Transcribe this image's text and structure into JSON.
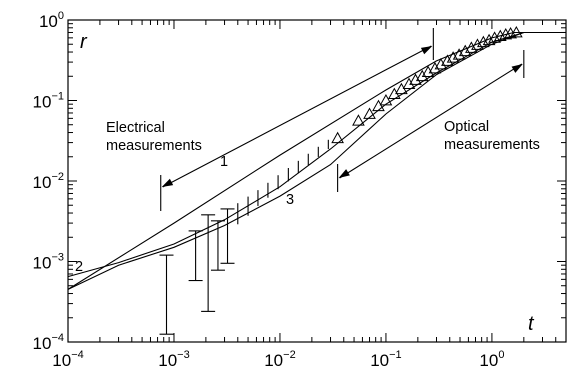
{
  "chart_data": {
    "type": "line",
    "title": "",
    "xlabel": "t",
    "ylabel": "r",
    "xscale": "log",
    "yscale": "log",
    "xlim": [
      0.0001,
      5
    ],
    "ylim": [
      0.0001,
      1
    ],
    "grid": false,
    "x_ticks": [
      {
        "base": "10",
        "exp": "−4",
        "value": 0.0001
      },
      {
        "base": "10",
        "exp": "−3",
        "value": 0.001
      },
      {
        "base": "10",
        "exp": "−2",
        "value": 0.01
      },
      {
        "base": "10",
        "exp": "−1",
        "value": 0.1
      },
      {
        "base": "10",
        "exp": "0",
        "value": 1
      }
    ],
    "y_ticks": [
      {
        "base": "10",
        "exp": "0",
        "value": 1
      },
      {
        "base": "10",
        "exp": "−1",
        "value": 0.1
      },
      {
        "base": "10",
        "exp": "−2",
        "value": 0.01
      },
      {
        "base": "10",
        "exp": "−3",
        "value": 0.001
      },
      {
        "base": "10",
        "exp": "−4",
        "value": 0.0001
      }
    ],
    "series": [
      {
        "name": "1",
        "x": [
          0.0001,
          0.001,
          0.01,
          0.1,
          0.3,
          1.0,
          1.6,
          2.0,
          5.0
        ],
        "y": [
          0.00045,
          0.003,
          0.021,
          0.135,
          0.31,
          0.6,
          0.7,
          0.7,
          0.7
        ]
      },
      {
        "name": "2",
        "x": [
          0.0001,
          0.0003,
          0.001,
          0.003,
          0.01,
          0.03,
          0.1,
          0.3,
          1.0,
          2.0,
          5.0
        ],
        "y": [
          0.00065,
          0.00097,
          0.00165,
          0.0033,
          0.0085,
          0.025,
          0.09,
          0.22,
          0.53,
          0.7,
          0.7
        ]
      },
      {
        "name": "3",
        "x": [
          0.0001,
          0.0003,
          0.001,
          0.003,
          0.01,
          0.03,
          0.1,
          0.3,
          1.0,
          2.0,
          5.0
        ],
        "y": [
          0.00045,
          0.0009,
          0.0015,
          0.0028,
          0.0065,
          0.016,
          0.068,
          0.21,
          0.5,
          0.7,
          0.7
        ]
      }
    ],
    "error_bars": [
      {
        "x": 0.00085,
        "low": 0.000125,
        "high": 0.0012
      },
      {
        "x": 0.0016,
        "low": 0.00058,
        "high": 0.0024
      },
      {
        "x": 0.0021,
        "low": 0.00024,
        "high": 0.0038
      },
      {
        "x": 0.0026,
        "low": 0.00078,
        "high": 0.0032
      },
      {
        "x": 0.0032,
        "low": 0.00095,
        "high": 0.0045
      },
      {
        "x": 0.004,
        "low": 0.0029,
        "high": 0.0053
      },
      {
        "x": 0.005,
        "low": 0.0037,
        "high": 0.0064
      },
      {
        "x": 0.0062,
        "low": 0.0049,
        "high": 0.0077
      },
      {
        "x": 0.0077,
        "low": 0.0062,
        "high": 0.0095
      },
      {
        "x": 0.0096,
        "low": 0.0079,
        "high": 0.0118
      },
      {
        "x": 0.012,
        "low": 0.0099,
        "high": 0.0145
      },
      {
        "x": 0.0149,
        "low": 0.0125,
        "high": 0.0178
      },
      {
        "x": 0.0185,
        "low": 0.0158,
        "high": 0.0218
      },
      {
        "x": 0.023,
        "low": 0.0199,
        "high": 0.0266
      },
      {
        "x": 0.0286,
        "low": 0.025,
        "high": 0.0325
      }
    ],
    "optical_points": {
      "x": [
        0.035,
        0.055,
        0.07,
        0.085,
        0.1,
        0.12,
        0.14,
        0.165,
        0.19,
        0.22,
        0.25,
        0.29,
        0.33,
        0.38,
        0.43,
        0.49,
        0.56,
        0.64,
        0.73,
        0.83,
        0.94,
        1.06,
        1.2,
        1.35,
        1.5,
        1.7
      ],
      "y": [
        0.034,
        0.056,
        0.068,
        0.085,
        0.1,
        0.12,
        0.138,
        0.16,
        0.18,
        0.2,
        0.225,
        0.25,
        0.28,
        0.31,
        0.34,
        0.37,
        0.41,
        0.45,
        0.49,
        0.53,
        0.56,
        0.6,
        0.63,
        0.66,
        0.68,
        0.7
      ]
    },
    "annotations": [
      {
        "id": "electrical",
        "lines": [
          "Electrical",
          "measurements"
        ],
        "range_x": [
          0.00075,
          0.28
        ]
      },
      {
        "id": "optical",
        "lines": [
          "Optical",
          "measurements"
        ],
        "range_x": [
          0.035,
          2.0
        ]
      }
    ]
  }
}
